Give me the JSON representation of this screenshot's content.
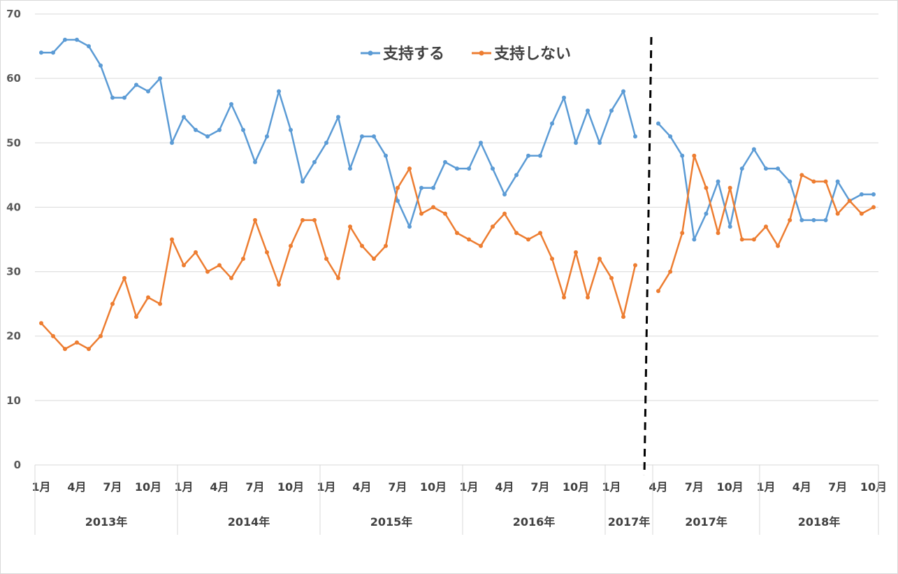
{
  "chart_data": {
    "type": "line",
    "title": "",
    "xlabel": "",
    "ylabel": "",
    "ylim": [
      0,
      70
    ],
    "yticks": [
      "0",
      "10",
      "20",
      "30",
      "40",
      "50",
      "60",
      "70"
    ],
    "grid": "horizontal",
    "legend_position": "top-center",
    "x_tick_labels": [
      "1月",
      "4月",
      "7月",
      "10月",
      "1月",
      "4月",
      "7月",
      "10月",
      "1月",
      "4月",
      "7月",
      "10月",
      "1月",
      "4月",
      "7月",
      "10月",
      "1月",
      "4月",
      "7月",
      "10月",
      "1月",
      "4月",
      "7月",
      "10月"
    ],
    "year_labels": [
      "2013年",
      "2014年",
      "2015年",
      "2016年",
      "2017年",
      "2017年",
      "2018年"
    ],
    "series": [
      {
        "name": "支持する",
        "color": "#5b9bd5",
        "segments": [
          [
            64,
            64,
            66,
            66,
            65,
            62,
            57,
            57,
            59,
            58,
            60,
            50,
            54,
            52,
            51,
            52,
            56,
            52,
            47,
            51,
            58,
            52,
            44,
            47,
            50,
            54,
            46,
            51,
            51,
            48,
            41,
            37,
            43,
            43,
            47,
            46,
            46,
            50,
            46,
            42,
            45,
            48,
            48,
            53,
            57,
            50,
            55,
            50,
            55,
            58,
            51
          ],
          [
            53,
            51,
            48,
            35,
            39,
            44,
            37,
            46,
            49,
            46,
            46,
            44,
            38,
            38,
            38,
            44,
            41,
            42,
            42
          ]
        ]
      },
      {
        "name": "支持しない",
        "color": "#ed7d31",
        "segments": [
          [
            22,
            20,
            18,
            19,
            18,
            20,
            25,
            29,
            23,
            26,
            25,
            35,
            31,
            33,
            30,
            31,
            29,
            32,
            38,
            33,
            28,
            34,
            38,
            38,
            32,
            29,
            37,
            34,
            32,
            34,
            43,
            46,
            39,
            40,
            39,
            36,
            35,
            34,
            37,
            39,
            36,
            35,
            36,
            32,
            26,
            33,
            26,
            32,
            29,
            23,
            31
          ],
          [
            27,
            30,
            36,
            48,
            43,
            36,
            43,
            35,
            35,
            37,
            34,
            38,
            45,
            44,
            44,
            39,
            41,
            39,
            40
          ]
        ]
      }
    ]
  }
}
